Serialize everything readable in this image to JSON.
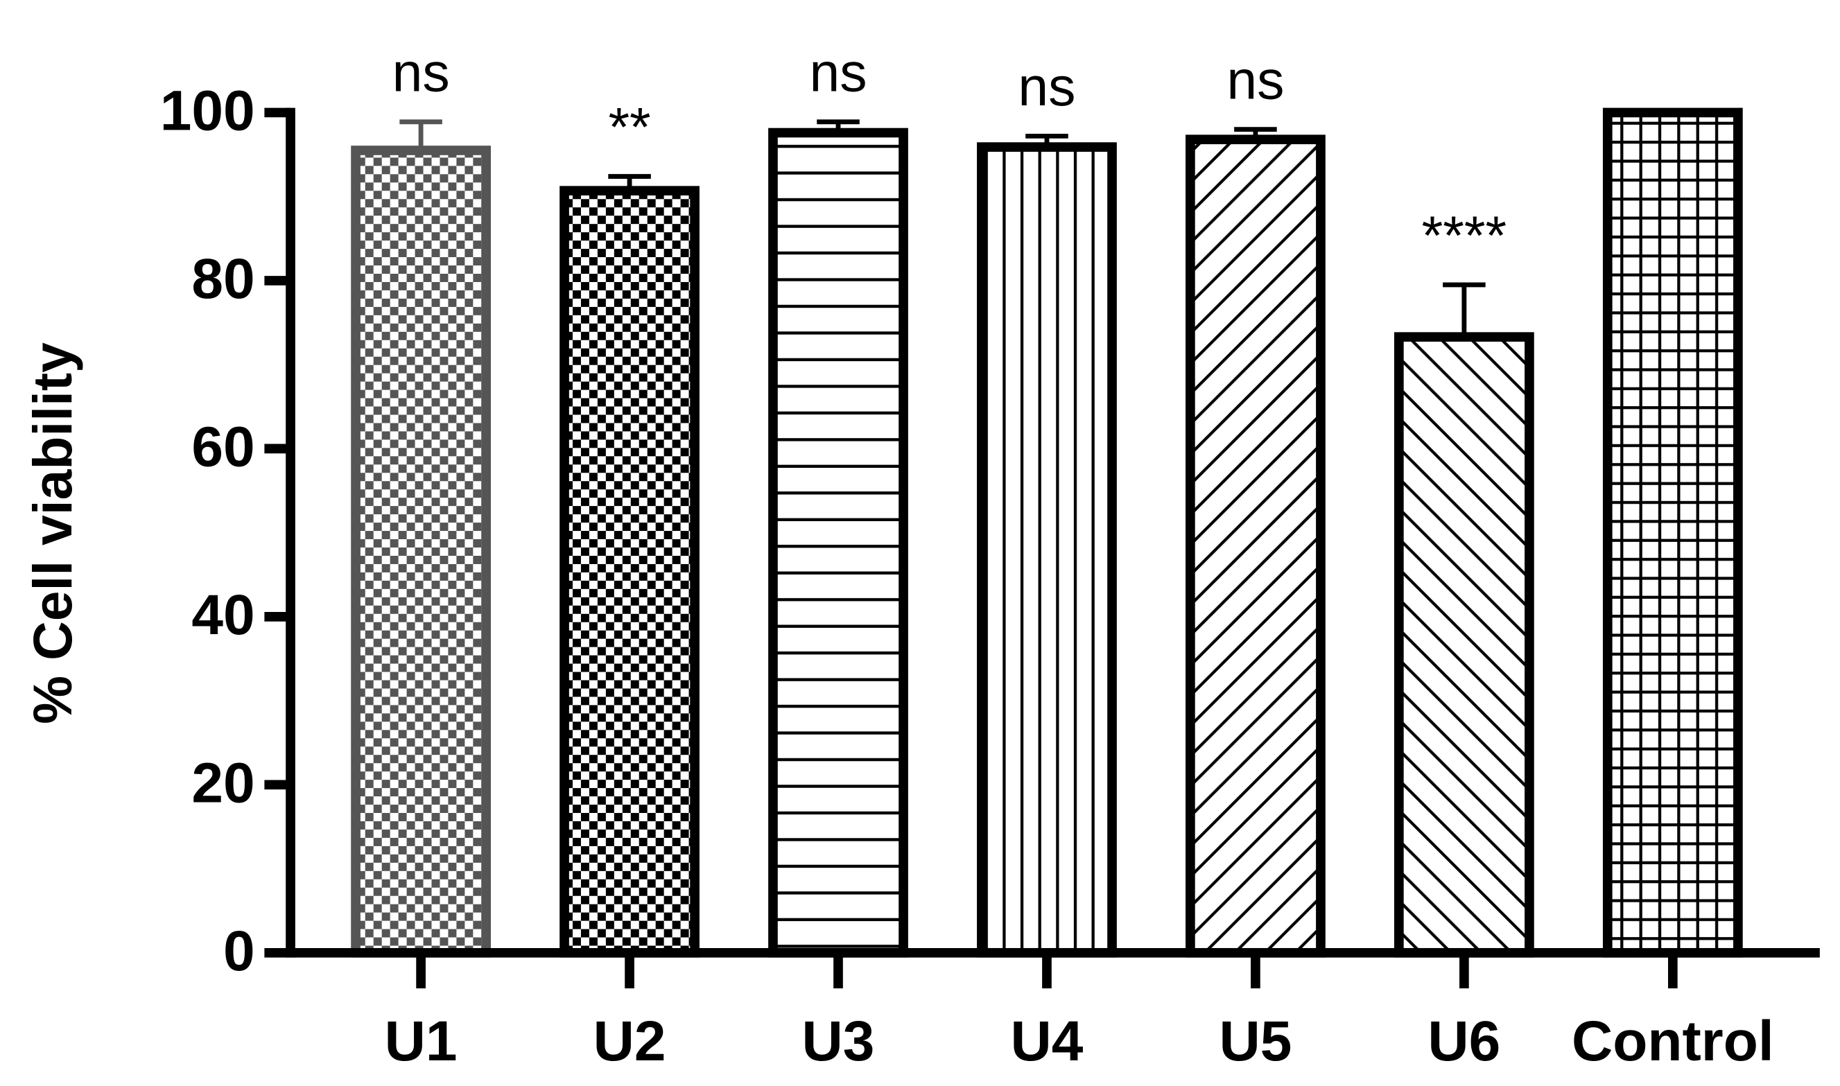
{
  "chart_data": {
    "type": "bar",
    "ylabel": "% Cell viability",
    "categories": [
      "U1",
      "U2",
      "U3",
      "U4",
      "U5",
      "U6",
      "Control"
    ],
    "values": [
      95.5,
      90.7,
      97.6,
      95.9,
      96.8,
      73.3,
      100
    ],
    "errors": [
      3.4,
      1.7,
      1.3,
      1.3,
      1.2,
      6.2,
      0
    ],
    "annotations": [
      "ns",
      "**",
      "ns",
      "ns",
      "ns",
      "****",
      null
    ],
    "edge_colors": [
      "#555555",
      "#000000",
      "#000000",
      "#000000",
      "#000000",
      "#000000",
      "#000000"
    ],
    "patterns": [
      "checker-fine",
      "checker",
      "horizontal",
      "vertical",
      "diagonal-up",
      "diagonal-down",
      "grid"
    ],
    "ylim": [
      0,
      100
    ],
    "yticks": [
      0,
      20,
      40,
      60,
      80,
      100
    ],
    "grid": false
  }
}
